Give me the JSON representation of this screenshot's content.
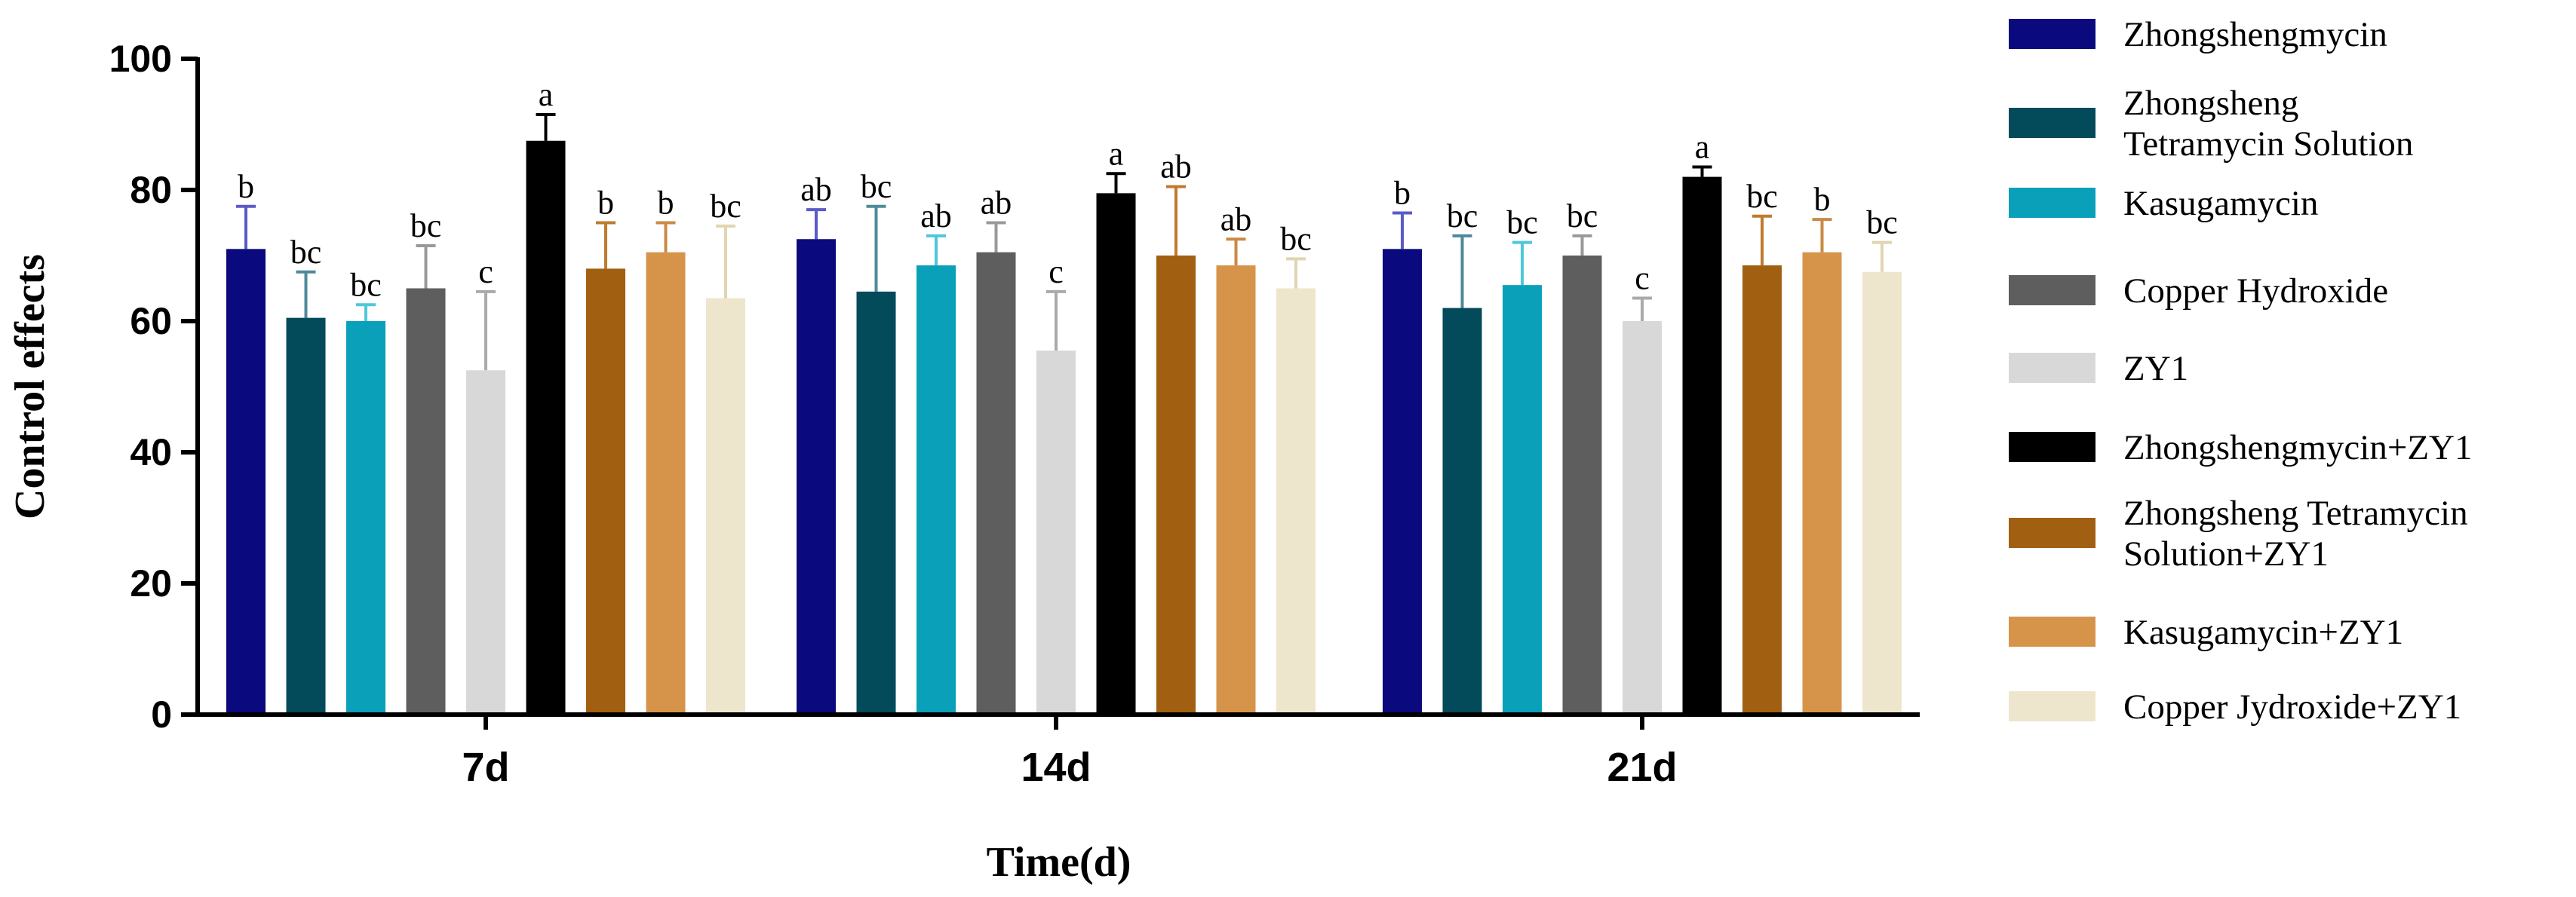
{
  "chart_data": {
    "type": "bar",
    "title": "",
    "xlabel": "Time(d)",
    "ylabel": "Control effects",
    "ylim": [
      0,
      100
    ],
    "yticks": [
      0,
      20,
      40,
      60,
      80,
      100
    ],
    "categories": [
      "7d",
      "14d",
      "21d"
    ],
    "legend_position": "right",
    "series": [
      {
        "name": "Zhongshengmycin",
        "color": "#0a0a7e",
        "error_color": "#5a5ac8",
        "values": [
          71,
          72.5,
          71
        ],
        "errors": [
          6.5,
          4.5,
          5.5
        ],
        "labels": [
          "b",
          "ab",
          "b"
        ]
      },
      {
        "name": "Zhongsheng Tetramycin Solution",
        "legend_lines": [
          "Zhongsheng",
          "Tetramycin Solution"
        ],
        "color": "#034a5a",
        "error_color": "#4d8a99",
        "values": [
          60.5,
          64.5,
          62
        ],
        "errors": [
          7,
          13,
          11
        ],
        "labels": [
          "bc",
          "bc",
          "bc"
        ]
      },
      {
        "name": "Kasugamycin",
        "color": "#0aa0ba",
        "error_color": "#4fc7da",
        "values": [
          60,
          68.5,
          65.5
        ],
        "errors": [
          2.5,
          4.5,
          6.5
        ],
        "labels": [
          "bc",
          "ab",
          "bc"
        ]
      },
      {
        "name": "Copper Hydroxide",
        "color": "#5e5e5e",
        "error_color": "#999999",
        "values": [
          65,
          70.5,
          70
        ],
        "errors": [
          6.5,
          4.5,
          3
        ],
        "labels": [
          "bc",
          "ab",
          "bc"
        ]
      },
      {
        "name": "ZY1",
        "color": "#d8d8d8",
        "error_color": "#aaaaaa",
        "values": [
          52.5,
          55.5,
          60
        ],
        "errors": [
          12,
          9,
          3.5
        ],
        "labels": [
          "c",
          "c",
          "c"
        ]
      },
      {
        "name": "Zhongshengmycin+ZY1",
        "color": "#000000",
        "error_color": "#000000",
        "values": [
          87.5,
          79.5,
          82
        ],
        "errors": [
          4,
          3,
          1.5
        ],
        "labels": [
          "a",
          "a",
          "a"
        ]
      },
      {
        "name": "Zhongsheng Tetramycin Solution+ZY1",
        "legend_lines": [
          "Zhongsheng Tetramycin",
          "Solution+ZY1"
        ],
        "color": "#a15f12",
        "error_color": "#c07a2e",
        "values": [
          68,
          70,
          68.5
        ],
        "errors": [
          7,
          10.5,
          7.5
        ],
        "labels": [
          "b",
          "ab",
          "bc"
        ]
      },
      {
        "name": "Kasugamycin+ZY1",
        "color": "#d6944b",
        "error_color": "#c98a45",
        "values": [
          70.5,
          68.5,
          70.5
        ],
        "errors": [
          4.5,
          4,
          5
        ],
        "labels": [
          "b",
          "ab",
          "b"
        ]
      },
      {
        "name": "Copper Jydroxide+ZY1",
        "color": "#eee6cc",
        "error_color": "#e0d5b0",
        "values": [
          63.5,
          65,
          67.5
        ],
        "errors": [
          11,
          4.5,
          4.5
        ],
        "labels": [
          "bc",
          "bc",
          "bc"
        ]
      }
    ]
  }
}
